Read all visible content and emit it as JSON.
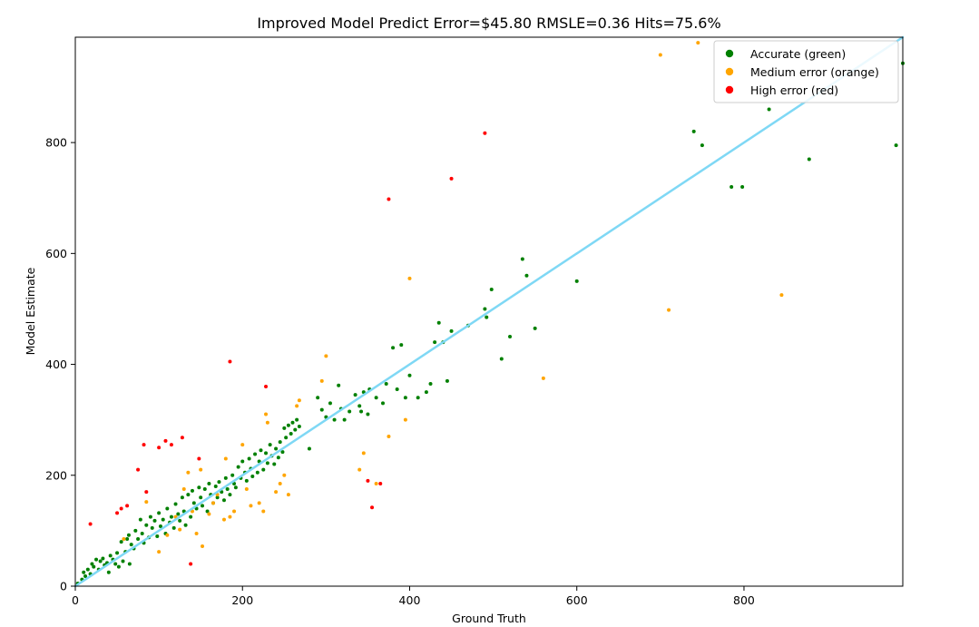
{
  "chart_data": {
    "type": "scatter",
    "title": "Improved Model Predict Error=$45.80 RMSLE=0.36 Hits=75.6%",
    "xlabel": "Ground Truth",
    "ylabel": "Model Estimate",
    "xlim": [
      0,
      990
    ],
    "ylim": [
      0,
      990
    ],
    "xticks": [
      0,
      200,
      400,
      600,
      800
    ],
    "yticks": [
      0,
      200,
      400,
      600,
      800
    ],
    "grid": false,
    "legend_position": "top-right",
    "reference_line": {
      "x": [
        0,
        990
      ],
      "y": [
        0,
        990
      ],
      "color": "#7fd8f5"
    },
    "series": [
      {
        "name": "Accurate (green)",
        "color": "#008000",
        "points": [
          [
            3,
            5
          ],
          [
            8,
            12
          ],
          [
            10,
            25
          ],
          [
            12,
            18
          ],
          [
            15,
            30
          ],
          [
            18,
            22
          ],
          [
            20,
            40
          ],
          [
            22,
            35
          ],
          [
            25,
            48
          ],
          [
            28,
            30
          ],
          [
            30,
            45
          ],
          [
            33,
            50
          ],
          [
            35,
            38
          ],
          [
            38,
            42
          ],
          [
            40,
            25
          ],
          [
            42,
            55
          ],
          [
            45,
            48
          ],
          [
            48,
            40
          ],
          [
            50,
            60
          ],
          [
            52,
            35
          ],
          [
            55,
            80
          ],
          [
            57,
            45
          ],
          [
            60,
            62
          ],
          [
            62,
            85
          ],
          [
            64,
            92
          ],
          [
            65,
            40
          ],
          [
            67,
            75
          ],
          [
            70,
            68
          ],
          [
            72,
            100
          ],
          [
            75,
            85
          ],
          [
            78,
            120
          ],
          [
            80,
            95
          ],
          [
            82,
            78
          ],
          [
            85,
            110
          ],
          [
            88,
            88
          ],
          [
            90,
            125
          ],
          [
            92,
            105
          ],
          [
            95,
            118
          ],
          [
            98,
            90
          ],
          [
            100,
            132
          ],
          [
            102,
            108
          ],
          [
            105,
            120
          ],
          [
            108,
            95
          ],
          [
            110,
            140
          ],
          [
            113,
            115
          ],
          [
            115,
            125
          ],
          [
            118,
            105
          ],
          [
            120,
            148
          ],
          [
            123,
            130
          ],
          [
            125,
            118
          ],
          [
            128,
            160
          ],
          [
            130,
            135
          ],
          [
            132,
            110
          ],
          [
            135,
            165
          ],
          [
            138,
            125
          ],
          [
            140,
            172
          ],
          [
            142,
            150
          ],
          [
            145,
            140
          ],
          [
            148,
            178
          ],
          [
            150,
            160
          ],
          [
            152,
            145
          ],
          [
            155,
            175
          ],
          [
            158,
            135
          ],
          [
            160,
            185
          ],
          [
            162,
            165
          ],
          [
            165,
            150
          ],
          [
            168,
            180
          ],
          [
            170,
            160
          ],
          [
            172,
            188
          ],
          [
            175,
            170
          ],
          [
            178,
            155
          ],
          [
            180,
            195
          ],
          [
            182,
            175
          ],
          [
            185,
            165
          ],
          [
            188,
            200
          ],
          [
            190,
            185
          ],
          [
            192,
            178
          ],
          [
            195,
            215
          ],
          [
            198,
            195
          ],
          [
            200,
            225
          ],
          [
            203,
            205
          ],
          [
            205,
            190
          ],
          [
            208,
            230
          ],
          [
            210,
            212
          ],
          [
            212,
            198
          ],
          [
            215,
            238
          ],
          [
            218,
            205
          ],
          [
            220,
            225
          ],
          [
            222,
            245
          ],
          [
            225,
            210
          ],
          [
            228,
            240
          ],
          [
            230,
            222
          ],
          [
            233,
            255
          ],
          [
            235,
            235
          ],
          [
            238,
            220
          ],
          [
            240,
            248
          ],
          [
            243,
            232
          ],
          [
            245,
            260
          ],
          [
            248,
            242
          ],
          [
            250,
            285
          ],
          [
            252,
            268
          ],
          [
            255,
            290
          ],
          [
            258,
            275
          ],
          [
            260,
            295
          ],
          [
            263,
            282
          ],
          [
            265,
            300
          ],
          [
            268,
            288
          ],
          [
            280,
            248
          ],
          [
            290,
            340
          ],
          [
            295,
            318
          ],
          [
            300,
            305
          ],
          [
            305,
            330
          ],
          [
            310,
            300
          ],
          [
            315,
            362
          ],
          [
            318,
            320
          ],
          [
            322,
            300
          ],
          [
            328,
            315
          ],
          [
            335,
            345
          ],
          [
            340,
            325
          ],
          [
            342,
            315
          ],
          [
            345,
            350
          ],
          [
            350,
            310
          ],
          [
            352,
            355
          ],
          [
            360,
            340
          ],
          [
            368,
            330
          ],
          [
            372,
            365
          ],
          [
            380,
            430
          ],
          [
            385,
            355
          ],
          [
            390,
            435
          ],
          [
            395,
            340
          ],
          [
            400,
            380
          ],
          [
            410,
            340
          ],
          [
            420,
            350
          ],
          [
            425,
            365
          ],
          [
            430,
            440
          ],
          [
            435,
            475
          ],
          [
            440,
            440
          ],
          [
            445,
            370
          ],
          [
            450,
            460
          ],
          [
            470,
            470
          ],
          [
            490,
            500
          ],
          [
            492,
            485
          ],
          [
            498,
            535
          ],
          [
            510,
            410
          ],
          [
            520,
            450
          ],
          [
            535,
            590
          ],
          [
            540,
            560
          ],
          [
            550,
            465
          ],
          [
            600,
            550
          ],
          [
            740,
            820
          ],
          [
            750,
            795
          ],
          [
            785,
            720
          ],
          [
            798,
            720
          ],
          [
            830,
            860
          ],
          [
            878,
            770
          ],
          [
            982,
            795
          ],
          [
            990,
            943
          ]
        ]
      },
      {
        "name": "Medium error (orange)",
        "color": "#ffa500",
        "points": [
          [
            58,
            85
          ],
          [
            85,
            152
          ],
          [
            100,
            62
          ],
          [
            110,
            92
          ],
          [
            120,
            125
          ],
          [
            125,
            102
          ],
          [
            130,
            175
          ],
          [
            135,
            205
          ],
          [
            140,
            135
          ],
          [
            145,
            95
          ],
          [
            150,
            210
          ],
          [
            152,
            72
          ],
          [
            160,
            130
          ],
          [
            165,
            150
          ],
          [
            170,
            165
          ],
          [
            178,
            120
          ],
          [
            180,
            230
          ],
          [
            185,
            125
          ],
          [
            190,
            135
          ],
          [
            200,
            255
          ],
          [
            205,
            175
          ],
          [
            210,
            145
          ],
          [
            220,
            150
          ],
          [
            225,
            135
          ],
          [
            228,
            310
          ],
          [
            230,
            295
          ],
          [
            240,
            170
          ],
          [
            245,
            185
          ],
          [
            250,
            200
          ],
          [
            255,
            165
          ],
          [
            265,
            325
          ],
          [
            268,
            335
          ],
          [
            295,
            370
          ],
          [
            300,
            415
          ],
          [
            340,
            210
          ],
          [
            345,
            240
          ],
          [
            360,
            185
          ],
          [
            375,
            270
          ],
          [
            395,
            300
          ],
          [
            400,
            555
          ],
          [
            560,
            375
          ],
          [
            700,
            958
          ],
          [
            710,
            498
          ],
          [
            745,
            980
          ],
          [
            845,
            525
          ]
        ]
      },
      {
        "name": "High error (red)",
        "color": "#ff0000",
        "points": [
          [
            18,
            112
          ],
          [
            50,
            132
          ],
          [
            55,
            140
          ],
          [
            62,
            145
          ],
          [
            75,
            210
          ],
          [
            82,
            255
          ],
          [
            85,
            170
          ],
          [
            100,
            250
          ],
          [
            108,
            262
          ],
          [
            115,
            255
          ],
          [
            128,
            268
          ],
          [
            138,
            40
          ],
          [
            148,
            230
          ],
          [
            185,
            405
          ],
          [
            228,
            360
          ],
          [
            350,
            190
          ],
          [
            355,
            142
          ],
          [
            365,
            185
          ],
          [
            375,
            698
          ],
          [
            450,
            735
          ],
          [
            490,
            817
          ]
        ]
      }
    ]
  }
}
